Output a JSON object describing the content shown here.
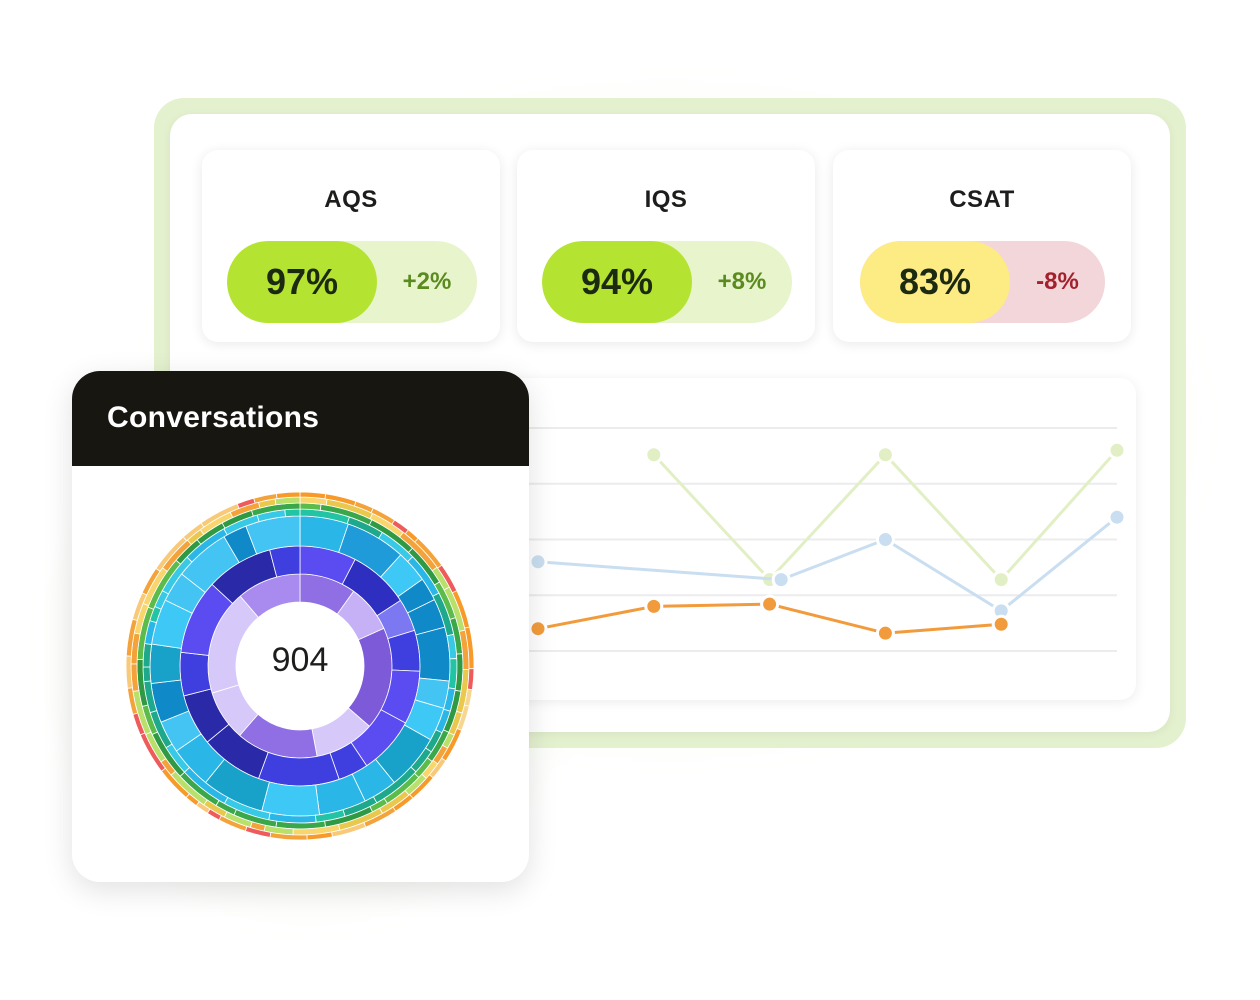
{
  "metrics": [
    {
      "label": "AQS",
      "value": "97%",
      "delta": "+2%",
      "pill_color": "#b5e332",
      "track_color": "#e7f4cc",
      "delta_color": "#5b8a1e"
    },
    {
      "label": "IQS",
      "value": "94%",
      "delta": "+8%",
      "pill_color": "#b5e332",
      "track_color": "#e7f4cc",
      "delta_color": "#5b8a1e"
    },
    {
      "label": "CSAT",
      "value": "83%",
      "delta": "-8%",
      "pill_color": "#fdeb84",
      "track_color": "#f3d6da",
      "delta_color": "#a3202d"
    }
  ],
  "conversations": {
    "title": "Conversations",
    "total": "904"
  },
  "chart_data": {
    "type": "line",
    "grid": true,
    "series": [
      {
        "color": "#e2efc4",
        "x": [
          1,
          2,
          3,
          4,
          5
        ],
        "y": [
          4.4,
          1.6,
          4.4,
          1.6,
          4.5
        ]
      },
      {
        "color": "#c9def0",
        "x": [
          0,
          2.1,
          3,
          4,
          5
        ],
        "y": [
          2.0,
          1.6,
          2.5,
          0.9,
          3.0
        ]
      },
      {
        "color": "#f29b3c",
        "x": [
          0,
          1,
          2,
          3,
          4
        ],
        "y": [
          0.5,
          1.0,
          1.05,
          0.4,
          0.6
        ]
      }
    ]
  },
  "colors": {
    "sunburst_inner": "#9b7be9",
    "sunburst_mid": "#3f3fe0",
    "sunburst_outer": "#2ab7e8",
    "sunburst_edge": "#f4a23a"
  }
}
